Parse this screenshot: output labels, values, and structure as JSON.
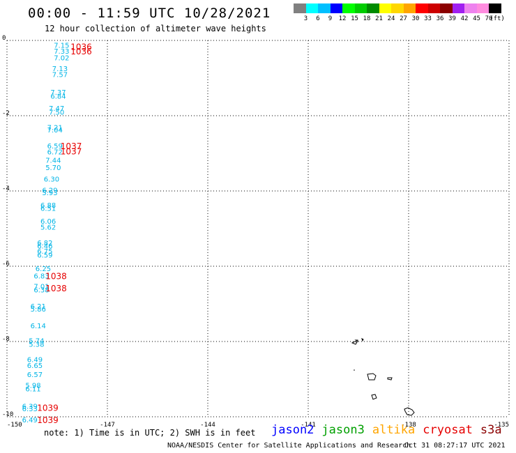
{
  "header": {
    "title": "00:00 - 11:59 UTC 10/28/2021",
    "subtitle": "12 hour collection of altimeter wave heights"
  },
  "colorbar": {
    "swatches": [
      "#808080",
      "#00ffff",
      "#00bfff",
      "#0000ff",
      "#00ff00",
      "#00cd00",
      "#008b00",
      "#ffff00",
      "#ffd700",
      "#ffa500",
      "#ff0000",
      "#cd0000",
      "#8b0000",
      "#a020f0",
      "#ee82ee",
      "#ff8cdf",
      "#000000"
    ],
    "ticks": [
      "3",
      "6",
      "9",
      "12",
      "15",
      "18",
      "21",
      "24",
      "27",
      "30",
      "33",
      "36",
      "39",
      "42",
      "45",
      "70",
      "(ft)"
    ]
  },
  "axes": {
    "x_ticks": [
      "-150",
      "-147",
      "-144",
      "-141",
      "-138",
      "-135"
    ],
    "x_values": [
      -150,
      -147,
      -144,
      -141,
      -138,
      -135
    ],
    "y_ticks": [
      "0",
      "-2",
      "-4",
      "-6",
      "-8",
      "-10"
    ],
    "y_values": [
      0,
      -2,
      -4,
      -6,
      -8,
      -10
    ],
    "xlim": [
      -150,
      -135
    ],
    "ylim": [
      -10,
      0
    ]
  },
  "wave_heights": [
    {
      "text": "7.15",
      "x": -148.6,
      "y": -0.05
    },
    {
      "text": "7.33",
      "x": -148.6,
      "y": -0.2
    },
    {
      "text": "7.02",
      "x": -148.6,
      "y": -0.38
    },
    {
      "text": "7.13",
      "x": -148.65,
      "y": -0.67
    },
    {
      "text": "7.57",
      "x": -148.65,
      "y": -0.82
    },
    {
      "text": "7.37",
      "x": -148.7,
      "y": -1.3
    },
    {
      "text": "6.84",
      "x": -148.7,
      "y": -1.4
    },
    {
      "text": "7.47",
      "x": -148.75,
      "y": -1.72
    },
    {
      "text": "7.50",
      "x": -148.75,
      "y": -1.82
    },
    {
      "text": "7.21",
      "x": -148.8,
      "y": -2.23
    },
    {
      "text": "7.04",
      "x": -148.8,
      "y": -2.3
    },
    {
      "text": "6.59",
      "x": -148.8,
      "y": -2.72
    },
    {
      "text": "6.72",
      "x": -148.8,
      "y": -2.88
    },
    {
      "text": "7.44",
      "x": -148.85,
      "y": -3.1
    },
    {
      "text": "5.70",
      "x": -148.85,
      "y": -3.3
    },
    {
      "text": "6.30",
      "x": -148.9,
      "y": -3.6
    },
    {
      "text": "6.29",
      "x": -148.95,
      "y": -3.9
    },
    {
      "text": "5.93",
      "x": -148.95,
      "y": -3.96
    },
    {
      "text": "6.88",
      "x": -149.0,
      "y": -4.3
    },
    {
      "text": "6.51",
      "x": -149.0,
      "y": -4.38
    },
    {
      "text": "6.06",
      "x": -149.0,
      "y": -4.72
    },
    {
      "text": "5.62",
      "x": -149.0,
      "y": -4.88
    },
    {
      "text": "6.82",
      "x": -149.1,
      "y": -5.3
    },
    {
      "text": "6.46",
      "x": -149.1,
      "y": -5.38
    },
    {
      "text": "6.75",
      "x": -149.1,
      "y": -5.52
    },
    {
      "text": "6.59",
      "x": -149.1,
      "y": -5.62
    },
    {
      "text": "6.25",
      "x": -149.15,
      "y": -5.98
    },
    {
      "text": "6.83",
      "x": -149.2,
      "y": -6.18
    },
    {
      "text": "7.01",
      "x": -149.2,
      "y": -6.45
    },
    {
      "text": "6.38",
      "x": -149.2,
      "y": -6.55
    },
    {
      "text": "6.21",
      "x": -149.3,
      "y": -6.98
    },
    {
      "text": "5.86",
      "x": -149.3,
      "y": -7.06
    },
    {
      "text": "6.14",
      "x": -149.3,
      "y": -7.5
    },
    {
      "text": "5.74",
      "x": -149.35,
      "y": -7.9
    },
    {
      "text": "5.38",
      "x": -149.35,
      "y": -7.99
    },
    {
      "text": "6.49",
      "x": -149.4,
      "y": -8.4
    },
    {
      "text": "6.65",
      "x": -149.4,
      "y": -8.56
    },
    {
      "text": "6.57",
      "x": -149.4,
      "y": -8.8
    },
    {
      "text": "5.98",
      "x": -149.45,
      "y": -9.08
    },
    {
      "text": "6.11",
      "x": -149.45,
      "y": -9.18
    },
    {
      "text": "6.39",
      "x": -149.55,
      "y": -9.64
    },
    {
      "text": "6.33",
      "x": -149.55,
      "y": -9.7
    },
    {
      "text": "6.49",
      "x": -149.55,
      "y": -10.0
    }
  ],
  "pressure_labels": [
    {
      "text": "1036",
      "x": -148.1,
      "y": -0.08
    },
    {
      "text": "1036",
      "x": -148.1,
      "y": -0.2
    },
    {
      "text": "1037",
      "x": -148.4,
      "y": -2.72
    },
    {
      "text": "1037",
      "x": -148.4,
      "y": -2.86
    },
    {
      "text": "1038",
      "x": -148.85,
      "y": -6.18
    },
    {
      "text": "1038",
      "x": -148.85,
      "y": -6.5
    },
    {
      "text": "1039",
      "x": -149.1,
      "y": -9.68
    },
    {
      "text": "1039",
      "x": -149.1,
      "y": -10.0
    }
  ],
  "colors": {
    "wave": "#00b4e6",
    "pressure": "#e60000",
    "grid": "#000000"
  },
  "footer": {
    "note": "note: 1) Time is in UTC; 2) SWH is in feet",
    "credit": "NOAA/NESDIS Center for Satellite Applications and Research",
    "timestamp": "Oct 31 08:27:17 UTC 2021"
  },
  "legend": [
    {
      "label": "jason2",
      "color": "#0000ff"
    },
    {
      "label": "jason3",
      "color": "#00a000"
    },
    {
      "label": "altika",
      "color": "#ffa500"
    },
    {
      "label": "cryosat",
      "color": "#e60000"
    },
    {
      "label": "s3a",
      "color": "#8b0000"
    }
  ]
}
